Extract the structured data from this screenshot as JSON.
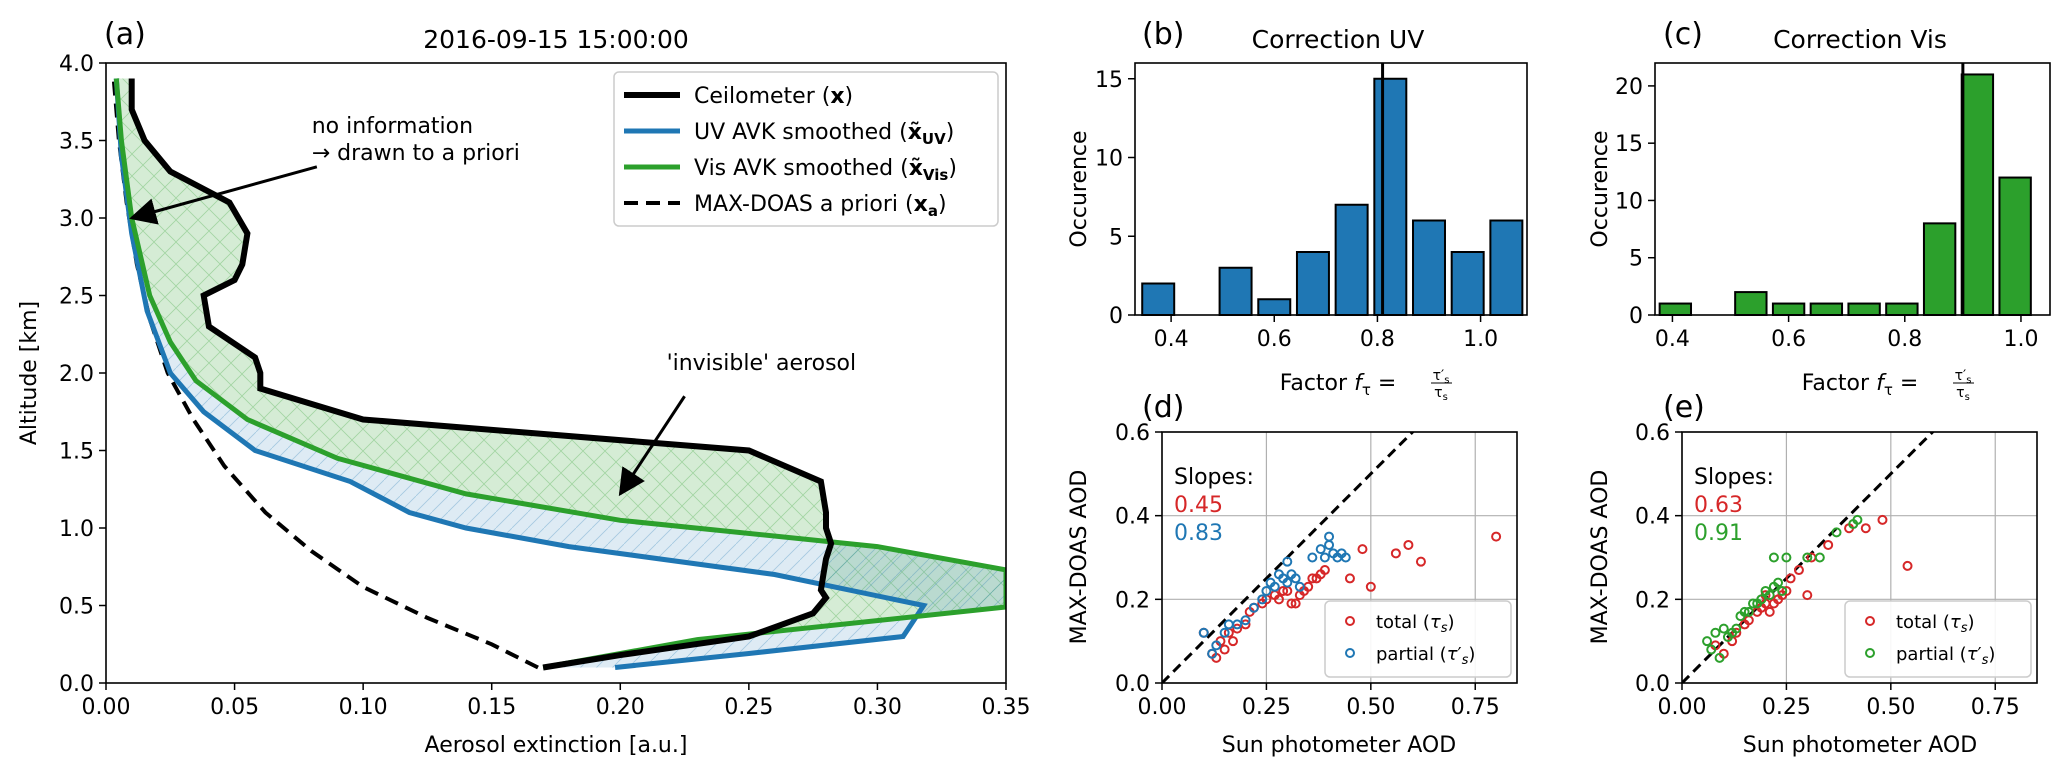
{
  "colors": {
    "black": "#000000",
    "blue": "#1f77b4",
    "green": "#2ca02c",
    "red": "#d62728"
  },
  "chart_data": [
    {
      "id": "a",
      "type": "line",
      "panel_label": "(a)",
      "title": "2016-09-15 15:00:00",
      "xlabel": "Aerosol extinction [a.u.]",
      "ylabel": "Altitude [km]",
      "xlim": [
        0,
        0.35
      ],
      "ylim": [
        0,
        4.0
      ],
      "xticks": [
        0,
        0.05,
        0.1,
        0.15,
        0.2,
        0.25,
        0.3,
        0.35
      ],
      "xtick_labels": [
        "0.00",
        "0.05",
        "0.10",
        "0.15",
        "0.20",
        "0.25",
        "0.30",
        "0.35"
      ],
      "yticks": [
        0,
        0.5,
        1,
        1.5,
        2,
        2.5,
        3,
        3.5,
        4
      ],
      "ytick_labels": [
        "0.0",
        "0.5",
        "1.0",
        "1.5",
        "2.0",
        "2.5",
        "3.0",
        "3.5",
        "4.0"
      ],
      "legend_position": "top-right",
      "legend": [
        {
          "pre": "Ceilometer (",
          "sym": "x",
          "sub": "",
          "post": ")",
          "color": "#000000",
          "style": "solid"
        },
        {
          "pre": "UV AVK smoothed (",
          "sym": "x̃",
          "sub": "UV",
          "post": ")",
          "color": "#1f77b4",
          "style": "solid"
        },
        {
          "pre": "Vis AVK smoothed (",
          "sym": "x̃",
          "sub": "Vis",
          "post": ")",
          "color": "#2ca02c",
          "style": "solid"
        },
        {
          "pre": "MAX-DOAS a priori (",
          "sym": "x",
          "sub": "a",
          "post": ")",
          "color": "#000000",
          "style": "dashed"
        }
      ],
      "annotations": [
        {
          "lines": [
            "no information",
            "→ drawn to a priori"
          ],
          "text_at": [
            0.08,
            3.55
          ],
          "arrow_from": [
            0.082,
            3.33
          ],
          "arrow_to": [
            0.01,
            3.0
          ]
        },
        {
          "lines": [
            "'invisible' aerosol"
          ],
          "text_at": [
            0.218,
            2.02
          ],
          "arrow_from": [
            0.225,
            1.85
          ],
          "arrow_to": [
            0.2,
            1.22
          ]
        }
      ],
      "series": {
        "ceilometer": {
          "x": [
            0.17,
            0.2,
            0.25,
            0.275,
            0.28,
            0.278,
            0.279,
            0.28,
            0.282,
            0.28,
            0.28,
            0.278,
            0.25,
            0.1,
            0.06,
            0.06,
            0.058,
            0.04,
            0.038,
            0.05,
            0.053,
            0.055,
            0.048,
            0.025,
            0.015,
            0.01,
            0.01
          ],
          "y": [
            0.1,
            0.18,
            0.3,
            0.45,
            0.55,
            0.6,
            0.7,
            0.8,
            0.9,
            1.0,
            1.1,
            1.3,
            1.5,
            1.7,
            1.9,
            2.0,
            2.1,
            2.3,
            2.5,
            2.6,
            2.7,
            2.9,
            3.1,
            3.3,
            3.5,
            3.7,
            3.9
          ]
        },
        "uv": {
          "x": [
            0.198,
            0.25,
            0.31,
            0.318,
            0.26,
            0.18,
            0.14,
            0.118,
            0.095,
            0.058,
            0.038,
            0.025,
            0.016,
            0.01,
            0.006,
            0.004
          ],
          "y": [
            0.1,
            0.19,
            0.3,
            0.5,
            0.7,
            0.88,
            1.0,
            1.1,
            1.3,
            1.5,
            1.75,
            2.0,
            2.4,
            2.9,
            3.4,
            3.9
          ]
        },
        "vis": {
          "x": [
            0.17,
            0.23,
            0.35,
            0.35,
            0.3,
            0.2,
            0.14,
            0.09,
            0.055,
            0.035,
            0.025,
            0.017,
            0.01,
            0.006,
            0.004
          ],
          "y": [
            0.1,
            0.28,
            0.49,
            0.73,
            0.88,
            1.05,
            1.22,
            1.45,
            1.7,
            1.95,
            2.2,
            2.5,
            3.0,
            3.5,
            3.9
          ]
        },
        "apriori": {
          "x": [
            0.168,
            0.15,
            0.125,
            0.1,
            0.08,
            0.062,
            0.046,
            0.034,
            0.024,
            0.017,
            0.012,
            0.008,
            0.005,
            0.003
          ],
          "y": [
            0.1,
            0.25,
            0.42,
            0.62,
            0.85,
            1.1,
            1.4,
            1.7,
            2.0,
            2.35,
            2.7,
            3.1,
            3.5,
            3.9
          ]
        }
      }
    },
    {
      "id": "b",
      "type": "bar",
      "panel_label": "(b)",
      "title": "Correction UV",
      "xlabel_pre": "Factor ",
      "ylabel": "Occurence",
      "xlim": [
        0.33,
        1.09
      ],
      "ylim": [
        0,
        16
      ],
      "xticks": [
        0.4,
        0.6,
        0.8,
        1.0
      ],
      "xtick_labels": [
        "0.4",
        "0.6",
        "0.8",
        "1.0"
      ],
      "yticks": [
        0,
        5,
        10,
        15
      ],
      "ytick_labels": [
        "0",
        "5",
        "10",
        "15"
      ],
      "bar_width": 0.062,
      "centers": [
        0.375,
        0.45,
        0.525,
        0.6,
        0.675,
        0.75,
        0.825,
        0.9,
        0.975,
        1.05
      ],
      "values": [
        2,
        0,
        3,
        1,
        4,
        7,
        15,
        6,
        4,
        6
      ],
      "vline": 0.81,
      "color": "#1f77b4"
    },
    {
      "id": "c",
      "type": "bar",
      "panel_label": "(c)",
      "title": "Correction Vis",
      "xlabel_pre": "Factor ",
      "ylabel": "Occurence",
      "xlim": [
        0.37,
        1.05
      ],
      "ylim": [
        0,
        22
      ],
      "xticks": [
        0.4,
        0.6,
        0.8,
        1.0
      ],
      "xtick_labels": [
        "0.4",
        "0.6",
        "0.8",
        "1.0"
      ],
      "yticks": [
        0,
        5,
        10,
        15,
        20
      ],
      "ytick_labels": [
        "0",
        "5",
        "10",
        "15",
        "20"
      ],
      "bar_width": 0.054,
      "centers": [
        0.405,
        0.47,
        0.535,
        0.6,
        0.665,
        0.73,
        0.795,
        0.86,
        0.925,
        0.99
      ],
      "values": [
        1,
        0,
        2,
        1,
        1,
        1,
        1,
        8,
        21,
        12
      ],
      "vline": 0.9,
      "color": "#2ca02c"
    },
    {
      "id": "d",
      "type": "scatter",
      "panel_label": "(d)",
      "xlabel": "Sun photometer AOD",
      "ylabel": "MAX-DOAS AOD",
      "xlim": [
        0,
        0.85
      ],
      "ylim": [
        0,
        0.6
      ],
      "xticks": [
        0,
        0.25,
        0.5,
        0.75
      ],
      "xtick_labels": [
        "0.00",
        "0.25",
        "0.50",
        "0.75"
      ],
      "yticks": [
        0,
        0.2,
        0.4,
        0.6
      ],
      "ytick_labels": [
        "0.0",
        "0.2",
        "0.4",
        "0.6"
      ],
      "slopes_label": "Slopes:",
      "slope_total": "0.45",
      "slope_partial": "0.83",
      "legend_position": "lower-right",
      "legend": [
        {
          "name": "total",
          "sym": "τ",
          "prime": "",
          "sub": "s",
          "color": "#d62728"
        },
        {
          "name": "partial",
          "sym": "τ",
          "prime": "′",
          "sub": "s",
          "color": "#1f77b4"
        }
      ],
      "series": [
        {
          "name": "total",
          "color": "#d62728",
          "points": [
            [
              0.1,
              0.12
            ],
            [
              0.12,
              0.07
            ],
            [
              0.13,
              0.06
            ],
            [
              0.14,
              0.1
            ],
            [
              0.15,
              0.08
            ],
            [
              0.16,
              0.12
            ],
            [
              0.17,
              0.1
            ],
            [
              0.18,
              0.13
            ],
            [
              0.2,
              0.14
            ],
            [
              0.21,
              0.17
            ],
            [
              0.22,
              0.18
            ],
            [
              0.24,
              0.19
            ],
            [
              0.25,
              0.2
            ],
            [
              0.27,
              0.21
            ],
            [
              0.28,
              0.2
            ],
            [
              0.29,
              0.22
            ],
            [
              0.3,
              0.22
            ],
            [
              0.31,
              0.19
            ],
            [
              0.32,
              0.19
            ],
            [
              0.33,
              0.21
            ],
            [
              0.34,
              0.22
            ],
            [
              0.35,
              0.23
            ],
            [
              0.36,
              0.25
            ],
            [
              0.37,
              0.25
            ],
            [
              0.38,
              0.26
            ],
            [
              0.39,
              0.27
            ],
            [
              0.45,
              0.25
            ],
            [
              0.48,
              0.32
            ],
            [
              0.5,
              0.23
            ],
            [
              0.56,
              0.31
            ],
            [
              0.59,
              0.33
            ],
            [
              0.62,
              0.29
            ],
            [
              0.8,
              0.35
            ]
          ]
        },
        {
          "name": "partial",
          "color": "#1f77b4",
          "points": [
            [
              0.1,
              0.12
            ],
            [
              0.12,
              0.07
            ],
            [
              0.13,
              0.09
            ],
            [
              0.15,
              0.12
            ],
            [
              0.16,
              0.14
            ],
            [
              0.18,
              0.14
            ],
            [
              0.2,
              0.15
            ],
            [
              0.22,
              0.18
            ],
            [
              0.24,
              0.2
            ],
            [
              0.25,
              0.22
            ],
            [
              0.26,
              0.24
            ],
            [
              0.27,
              0.23
            ],
            [
              0.28,
              0.26
            ],
            [
              0.29,
              0.25
            ],
            [
              0.3,
              0.24
            ],
            [
              0.31,
              0.26
            ],
            [
              0.32,
              0.25
            ],
            [
              0.3,
              0.29
            ],
            [
              0.33,
              0.23
            ],
            [
              0.36,
              0.3
            ],
            [
              0.38,
              0.32
            ],
            [
              0.4,
              0.33
            ],
            [
              0.41,
              0.31
            ],
            [
              0.42,
              0.3
            ],
            [
              0.43,
              0.31
            ],
            [
              0.44,
              0.3
            ],
            [
              0.4,
              0.35
            ],
            [
              0.39,
              0.3
            ]
          ]
        }
      ]
    },
    {
      "id": "e",
      "type": "scatter",
      "panel_label": "(e)",
      "xlabel": "Sun photometer AOD",
      "ylabel": "MAX-DOAS AOD",
      "xlim": [
        0,
        0.85
      ],
      "ylim": [
        0,
        0.6
      ],
      "xticks": [
        0,
        0.25,
        0.5,
        0.75
      ],
      "xtick_labels": [
        "0.00",
        "0.25",
        "0.50",
        "0.75"
      ],
      "yticks": [
        0,
        0.2,
        0.4,
        0.6
      ],
      "ytick_labels": [
        "0.0",
        "0.2",
        "0.4",
        "0.6"
      ],
      "slopes_label": "Slopes:",
      "slope_total": "0.63",
      "slope_partial": "0.91",
      "legend_position": "lower-right",
      "legend": [
        {
          "name": "total",
          "sym": "τ",
          "prime": "",
          "sub": "s",
          "color": "#d62728"
        },
        {
          "name": "partial",
          "sym": "τ",
          "prime": "′",
          "sub": "s",
          "color": "#2ca02c"
        }
      ],
      "series": [
        {
          "name": "total",
          "color": "#d62728",
          "points": [
            [
              0.08,
              0.09
            ],
            [
              0.1,
              0.07
            ],
            [
              0.12,
              0.1
            ],
            [
              0.13,
              0.12
            ],
            [
              0.15,
              0.14
            ],
            [
              0.16,
              0.15
            ],
            [
              0.18,
              0.17
            ],
            [
              0.19,
              0.18
            ],
            [
              0.2,
              0.19
            ],
            [
              0.2,
              0.21
            ],
            [
              0.21,
              0.17
            ],
            [
              0.22,
              0.19
            ],
            [
              0.23,
              0.2
            ],
            [
              0.24,
              0.21
            ],
            [
              0.25,
              0.22
            ],
            [
              0.26,
              0.25
            ],
            [
              0.28,
              0.27
            ],
            [
              0.3,
              0.21
            ],
            [
              0.31,
              0.3
            ],
            [
              0.35,
              0.33
            ],
            [
              0.4,
              0.37
            ],
            [
              0.44,
              0.37
            ],
            [
              0.48,
              0.39
            ],
            [
              0.54,
              0.28
            ]
          ]
        },
        {
          "name": "partial",
          "color": "#2ca02c",
          "points": [
            [
              0.06,
              0.1
            ],
            [
              0.07,
              0.08
            ],
            [
              0.08,
              0.12
            ],
            [
              0.09,
              0.06
            ],
            [
              0.1,
              0.13
            ],
            [
              0.11,
              0.11
            ],
            [
              0.12,
              0.12
            ],
            [
              0.13,
              0.13
            ],
            [
              0.14,
              0.16
            ],
            [
              0.15,
              0.17
            ],
            [
              0.16,
              0.17
            ],
            [
              0.17,
              0.19
            ],
            [
              0.18,
              0.19
            ],
            [
              0.19,
              0.2
            ],
            [
              0.2,
              0.22
            ],
            [
              0.21,
              0.21
            ],
            [
              0.22,
              0.23
            ],
            [
              0.23,
              0.24
            ],
            [
              0.24,
              0.22
            ],
            [
              0.25,
              0.3
            ],
            [
              0.22,
              0.3
            ],
            [
              0.3,
              0.3
            ],
            [
              0.33,
              0.3
            ],
            [
              0.37,
              0.36
            ],
            [
              0.41,
              0.38
            ],
            [
              0.42,
              0.39
            ]
          ]
        }
      ]
    }
  ]
}
